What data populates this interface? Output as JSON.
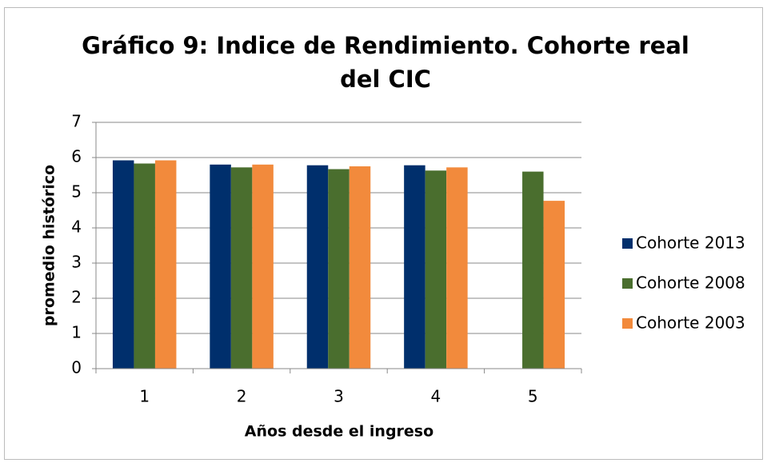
{
  "chart_data": {
    "type": "bar",
    "title": "Gráfico 9: Indice de Rendimiento. Cohorte real del CIC",
    "x_label": "Años desde el ingreso",
    "y_label": "promedio histórico",
    "categories": [
      "1",
      "2",
      "3",
      "4",
      "5"
    ],
    "series": [
      {
        "name": "Cohorte 2013",
        "color": "#002f6c",
        "values": [
          5.92,
          5.8,
          5.78,
          5.78,
          null
        ]
      },
      {
        "name": "Cohorte 2008",
        "color": "#4a6e2e",
        "values": [
          5.83,
          5.72,
          5.67,
          5.63,
          5.6
        ]
      },
      {
        "name": "Cohorte 2003",
        "color": "#f28a3c",
        "values": [
          5.92,
          5.8,
          5.75,
          5.72,
          4.77
        ]
      }
    ],
    "ylim": [
      0,
      7
    ],
    "yticks": [
      0,
      1,
      2,
      3,
      4,
      5,
      6,
      7
    ],
    "grid": true,
    "legend": "right"
  }
}
